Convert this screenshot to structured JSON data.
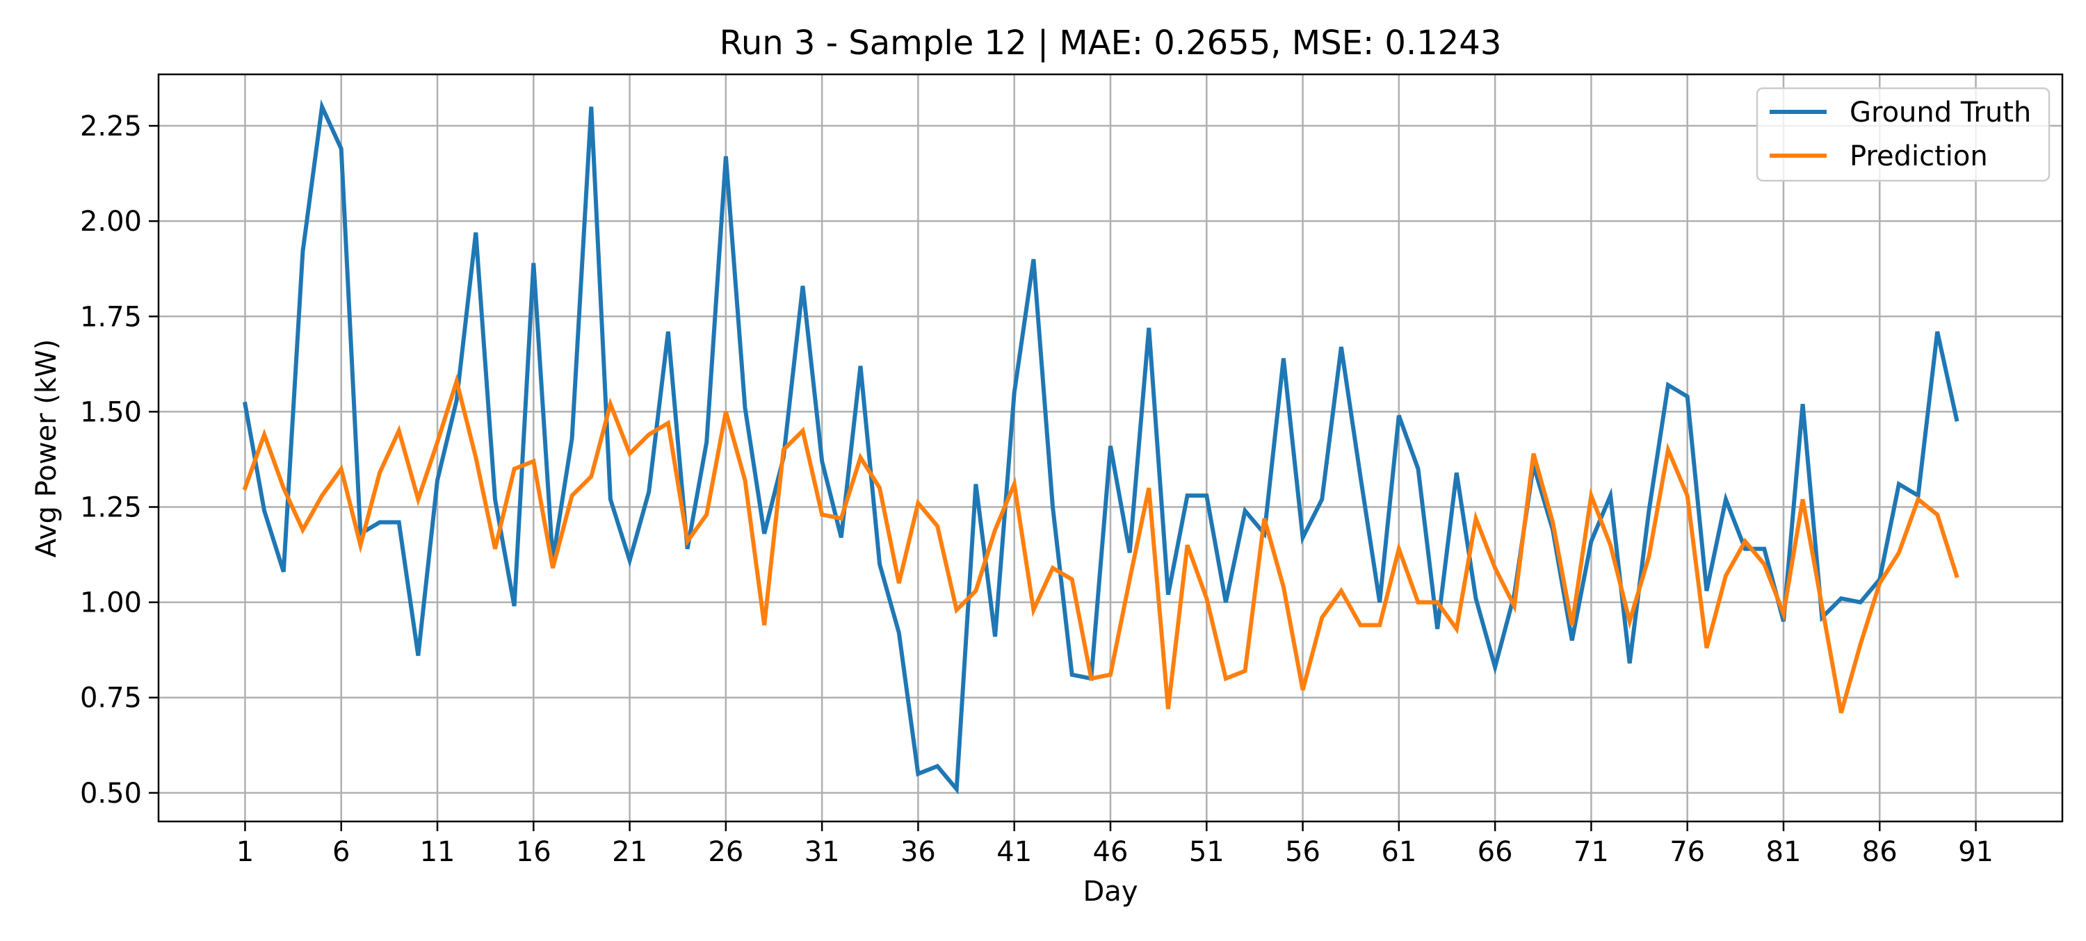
{
  "chart_data": {
    "type": "line",
    "title": "Run 3 - Sample 12 | MAE: 0.2655, MSE: 0.1243",
    "xlabel": "Day",
    "ylabel": "Avg Power (kW)",
    "xlim": [
      -3.5,
      95.5
    ],
    "ylim": [
      0.425,
      2.385
    ],
    "grid": true,
    "legend_position": "top-right",
    "x_ticks": [
      1,
      6,
      11,
      16,
      21,
      26,
      31,
      36,
      41,
      46,
      51,
      56,
      61,
      66,
      71,
      76,
      81,
      86,
      91
    ],
    "x_tick_labels": [
      "1",
      "6",
      "11",
      "16",
      "21",
      "26",
      "31",
      "36",
      "41",
      "46",
      "51",
      "56",
      "61",
      "66",
      "71",
      "76",
      "81",
      "86",
      "91"
    ],
    "y_ticks": [
      0.5,
      0.75,
      1.0,
      1.25,
      1.5,
      1.75,
      2.0,
      2.25
    ],
    "y_tick_labels": [
      "0.50",
      "0.75",
      "1.00",
      "1.25",
      "1.50",
      "1.75",
      "2.00",
      "2.25"
    ],
    "x": [
      1,
      2,
      3,
      4,
      5,
      6,
      7,
      8,
      9,
      10,
      11,
      12,
      13,
      14,
      15,
      16,
      17,
      18,
      19,
      20,
      21,
      22,
      23,
      24,
      25,
      26,
      27,
      28,
      29,
      30,
      31,
      32,
      33,
      34,
      35,
      36,
      37,
      38,
      39,
      40,
      41,
      42,
      43,
      44,
      45,
      46,
      47,
      48,
      49,
      50,
      51,
      52,
      53,
      54,
      55,
      56,
      57,
      58,
      59,
      60,
      61,
      62,
      63,
      64,
      65,
      66,
      67,
      68,
      69,
      70,
      71,
      72,
      73,
      74,
      75,
      76,
      77,
      78,
      79,
      80,
      81,
      82,
      83,
      84,
      85,
      86,
      87,
      88,
      89,
      90
    ],
    "series": [
      {
        "name": "Ground Truth",
        "color": "#1f77b4",
        "values": [
          1.52,
          1.24,
          1.08,
          1.92,
          2.3,
          2.19,
          1.18,
          1.21,
          1.21,
          0.86,
          1.32,
          1.53,
          1.97,
          1.27,
          0.99,
          1.89,
          1.11,
          1.43,
          2.3,
          1.27,
          1.11,
          1.29,
          1.71,
          1.14,
          1.42,
          2.17,
          1.51,
          1.18,
          1.38,
          1.83,
          1.37,
          1.17,
          1.62,
          1.1,
          0.92,
          0.55,
          0.57,
          0.51,
          1.31,
          0.91,
          1.55,
          1.9,
          1.25,
          0.81,
          0.8,
          1.41,
          1.13,
          1.72,
          1.02,
          1.28,
          1.28,
          1.0,
          1.24,
          1.18,
          1.64,
          1.17,
          1.27,
          1.67,
          1.33,
          1.0,
          1.49,
          1.35,
          0.93,
          1.34,
          1.01,
          0.83,
          1.02,
          1.36,
          1.19,
          0.9,
          1.16,
          1.28,
          0.84,
          1.24,
          1.57,
          1.54,
          1.03,
          1.27,
          1.14,
          1.14,
          0.95,
          1.52,
          0.96,
          1.01,
          1.0,
          1.06,
          1.31,
          1.28,
          1.71,
          1.48
        ]
      },
      {
        "name": "Prediction",
        "color": "#ff7f0e",
        "values": [
          1.3,
          1.44,
          1.3,
          1.19,
          1.28,
          1.35,
          1.15,
          1.34,
          1.45,
          1.27,
          1.42,
          1.58,
          1.38,
          1.14,
          1.35,
          1.37,
          1.09,
          1.28,
          1.33,
          1.52,
          1.39,
          1.44,
          1.47,
          1.16,
          1.23,
          1.5,
          1.32,
          0.94,
          1.4,
          1.45,
          1.23,
          1.22,
          1.38,
          1.3,
          1.05,
          1.26,
          1.2,
          0.98,
          1.03,
          1.19,
          1.31,
          0.98,
          1.09,
          1.06,
          0.8,
          0.81,
          1.06,
          1.3,
          0.72,
          1.15,
          1.01,
          0.8,
          0.82,
          1.22,
          1.04,
          0.77,
          0.96,
          1.03,
          0.94,
          0.94,
          1.14,
          1.0,
          1.0,
          0.93,
          1.22,
          1.09,
          0.99,
          1.39,
          1.21,
          0.94,
          1.28,
          1.15,
          0.95,
          1.12,
          1.4,
          1.28,
          0.88,
          1.07,
          1.16,
          1.1,
          0.97,
          1.27,
          0.99,
          0.71,
          0.89,
          1.05,
          1.13,
          1.27,
          1.23,
          1.07
        ]
      }
    ]
  }
}
